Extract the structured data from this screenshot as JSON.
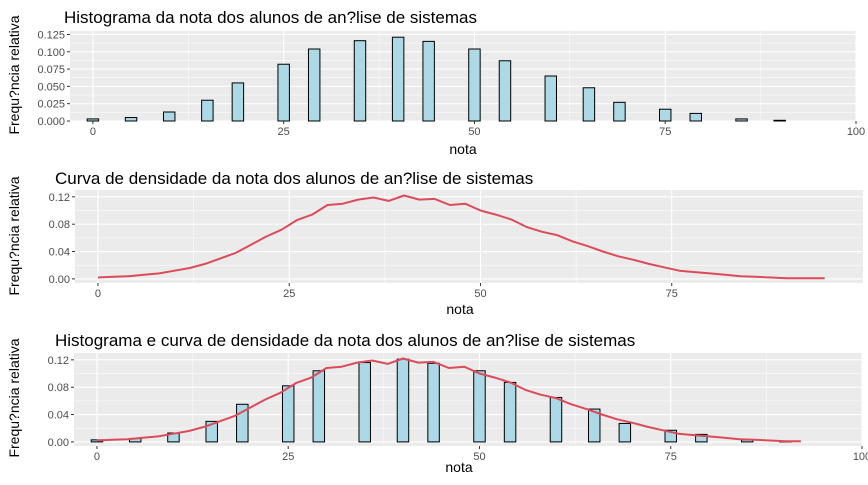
{
  "colors": {
    "panel": "#ebebeb",
    "grid": "#ffffff",
    "bar_fill": "#add8e6",
    "bar_stroke": "#000000",
    "density": "#dc4b5a",
    "tick_text": "#4d4d4d"
  },
  "chart_data": [
    {
      "type": "bar",
      "title": "Histograma da nota dos alunos de an?lise de sistemas",
      "xlabel": "nota",
      "ylabel": "Frequ?ncia relativa",
      "xlim": [
        -3,
        100
      ],
      "ylim": [
        0,
        0.13
      ],
      "x_ticks": [
        0,
        25,
        50,
        75,
        100
      ],
      "x_tick_labels": [
        "0",
        "25",
        "50",
        "75",
        "100"
      ],
      "y_ticks": [
        0,
        0.025,
        0.05,
        0.075,
        0.1,
        0.125
      ],
      "y_tick_labels": [
        "0.000",
        "0.025",
        "0.050",
        "0.075",
        "0.100",
        "0.125"
      ],
      "grid": true,
      "bars": [
        {
          "x": 0,
          "y": 0.003
        },
        {
          "x": 5,
          "y": 0.005
        },
        {
          "x": 10,
          "y": 0.013
        },
        {
          "x": 15,
          "y": 0.03
        },
        {
          "x": 19,
          "y": 0.055
        },
        {
          "x": 25,
          "y": 0.082
        },
        {
          "x": 29,
          "y": 0.104
        },
        {
          "x": 35,
          "y": 0.116
        },
        {
          "x": 40,
          "y": 0.121
        },
        {
          "x": 44,
          "y": 0.115
        },
        {
          "x": 50,
          "y": 0.104
        },
        {
          "x": 54,
          "y": 0.087
        },
        {
          "x": 60,
          "y": 0.065
        },
        {
          "x": 65,
          "y": 0.048
        },
        {
          "x": 69,
          "y": 0.027
        },
        {
          "x": 75,
          "y": 0.017
        },
        {
          "x": 79,
          "y": 0.011
        },
        {
          "x": 85,
          "y": 0.003
        },
        {
          "x": 90,
          "y": 0.001
        }
      ]
    },
    {
      "type": "line",
      "title": "Curva de densidade da nota dos alunos de an?lise de sistemas",
      "xlabel": "nota",
      "ylabel": "Frequ?ncia relativa",
      "xlim": [
        -3,
        100
      ],
      "ylim": [
        -0.006,
        0.13
      ],
      "x_ticks": [
        0,
        25,
        50,
        75
      ],
      "x_tick_labels": [
        "0",
        "25",
        "50",
        "75"
      ],
      "y_ticks": [
        0,
        0.04,
        0.08,
        0.12
      ],
      "y_tick_labels": [
        "0.00",
        "0.04",
        "0.08",
        "0.12"
      ],
      "grid": true,
      "x": [
        0,
        2,
        4,
        6,
        8,
        10,
        12,
        14,
        16,
        18,
        20,
        22,
        24,
        26,
        28,
        30,
        32,
        34,
        36,
        38,
        40,
        42,
        44,
        46,
        48,
        50,
        52,
        54,
        56,
        58,
        60,
        62,
        64,
        66,
        68,
        70,
        72,
        74,
        76,
        78,
        80,
        82,
        84,
        86,
        88,
        90,
        92,
        95
      ],
      "y": [
        0.002,
        0.003,
        0.004,
        0.006,
        0.008,
        0.012,
        0.016,
        0.022,
        0.03,
        0.038,
        0.05,
        0.062,
        0.072,
        0.086,
        0.094,
        0.108,
        0.11,
        0.116,
        0.119,
        0.114,
        0.122,
        0.116,
        0.117,
        0.108,
        0.11,
        0.1,
        0.094,
        0.087,
        0.076,
        0.069,
        0.064,
        0.055,
        0.048,
        0.04,
        0.033,
        0.028,
        0.022,
        0.017,
        0.012,
        0.01,
        0.008,
        0.006,
        0.004,
        0.003,
        0.002,
        0.001,
        0.001,
        0.001
      ]
    },
    {
      "type": "bar",
      "title": "Histograma e curva de densidade da nota dos alunos de an?lise de sistemas",
      "xlabel": "nota",
      "ylabel": "Frequ?ncia relativa",
      "xlim": [
        -3,
        100
      ],
      "ylim": [
        -0.006,
        0.13
      ],
      "x_ticks": [
        0,
        25,
        50,
        75,
        100
      ],
      "x_tick_labels": [
        "0",
        "25",
        "50",
        "75",
        "100"
      ],
      "y_ticks": [
        0,
        0.04,
        0.08,
        0.12
      ],
      "y_tick_labels": [
        "0.00",
        "0.04",
        "0.08",
        "0.12"
      ],
      "grid": true,
      "bars": [
        {
          "x": 0,
          "y": 0.003
        },
        {
          "x": 5,
          "y": 0.005
        },
        {
          "x": 10,
          "y": 0.013
        },
        {
          "x": 15,
          "y": 0.03
        },
        {
          "x": 19,
          "y": 0.055
        },
        {
          "x": 25,
          "y": 0.082
        },
        {
          "x": 29,
          "y": 0.104
        },
        {
          "x": 35,
          "y": 0.116
        },
        {
          "x": 40,
          "y": 0.121
        },
        {
          "x": 44,
          "y": 0.115
        },
        {
          "x": 50,
          "y": 0.104
        },
        {
          "x": 54,
          "y": 0.087
        },
        {
          "x": 60,
          "y": 0.065
        },
        {
          "x": 65,
          "y": 0.048
        },
        {
          "x": 69,
          "y": 0.027
        },
        {
          "x": 75,
          "y": 0.017
        },
        {
          "x": 79,
          "y": 0.011
        },
        {
          "x": 85,
          "y": 0.003
        },
        {
          "x": 90,
          "y": 0.001
        }
      ],
      "density_x": [
        0,
        2,
        4,
        6,
        8,
        10,
        12,
        14,
        16,
        18,
        20,
        22,
        24,
        26,
        28,
        30,
        32,
        34,
        36,
        38,
        40,
        42,
        44,
        46,
        48,
        50,
        52,
        54,
        56,
        58,
        60,
        62,
        64,
        66,
        68,
        70,
        72,
        74,
        76,
        78,
        80,
        82,
        84,
        86,
        88,
        90,
        92
      ],
      "density_y": [
        0.002,
        0.003,
        0.004,
        0.006,
        0.008,
        0.012,
        0.016,
        0.022,
        0.03,
        0.038,
        0.05,
        0.062,
        0.072,
        0.086,
        0.094,
        0.108,
        0.11,
        0.116,
        0.119,
        0.114,
        0.122,
        0.116,
        0.117,
        0.108,
        0.11,
        0.1,
        0.094,
        0.087,
        0.076,
        0.069,
        0.064,
        0.055,
        0.048,
        0.04,
        0.033,
        0.028,
        0.022,
        0.017,
        0.012,
        0.01,
        0.008,
        0.006,
        0.004,
        0.003,
        0.002,
        0.001,
        0.001
      ]
    }
  ]
}
